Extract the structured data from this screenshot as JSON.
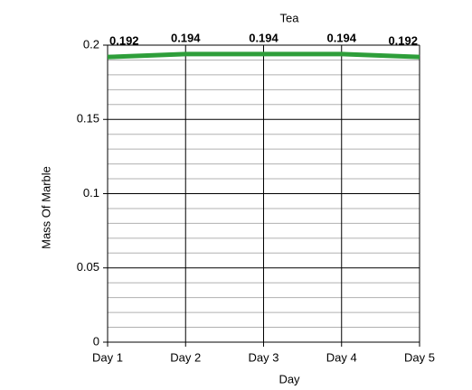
{
  "chart_data": {
    "type": "line",
    "title": "Tea",
    "x_label": "Day",
    "y_label": "Mass Of Marble",
    "categories": [
      "Day 1",
      "Day 2",
      "Day 3",
      "Day 4",
      "Day 5"
    ],
    "values": [
      0.192,
      0.194,
      0.194,
      0.194,
      0.192
    ],
    "color": "#2e9e3a",
    "ylim": [
      0,
      0.2
    ],
    "yticks": [
      0,
      0.05,
      0.1,
      0.15,
      0.2
    ],
    "grid": true,
    "data_labels": true
  }
}
